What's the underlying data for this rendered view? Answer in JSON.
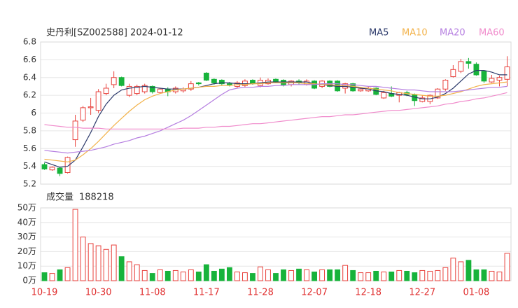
{
  "chart_data": {
    "type": "candlestick",
    "title": "史丹利[SZ002588] 2024-01-12",
    "categories": [
      "10-19",
      null,
      null,
      null,
      null,
      null,
      null,
      "10-30",
      null,
      null,
      null,
      null,
      null,
      null,
      "11-08",
      null,
      null,
      null,
      null,
      null,
      null,
      "11-17",
      null,
      null,
      null,
      null,
      null,
      null,
      "11-28",
      null,
      null,
      null,
      null,
      null,
      null,
      "12-07",
      null,
      null,
      null,
      null,
      null,
      null,
      "12-18",
      null,
      null,
      null,
      null,
      null,
      null,
      "12-27",
      null,
      null,
      null,
      null,
      null,
      null,
      "01-08",
      null,
      null,
      null,
      null
    ],
    "open": [
      5.42,
      5.36,
      5.38,
      5.33,
      5.7,
      5.92,
      6.06,
      6.03,
      6.22,
      6.32,
      6.4,
      6.2,
      6.22,
      6.24,
      6.3,
      6.23,
      6.27,
      6.24,
      6.25,
      6.27,
      6.34,
      6.45,
      6.38,
      6.37,
      6.33,
      6.3,
      6.31,
      6.37,
      6.31,
      6.33,
      6.38,
      6.37,
      6.32,
      6.36,
      6.32,
      6.36,
      6.3,
      6.36,
      6.36,
      6.28,
      6.33,
      6.25,
      6.25,
      6.28,
      6.17,
      6.22,
      6.2,
      6.23,
      6.21,
      6.13,
      6.13,
      6.17,
      6.27,
      6.41,
      6.47,
      6.58,
      6.55,
      6.47,
      6.35,
      6.37,
      6.38
    ],
    "high": [
      5.44,
      5.4,
      5.39,
      5.51,
      5.98,
      6.08,
      6.17,
      6.27,
      6.33,
      6.47,
      6.41,
      6.33,
      6.32,
      6.33,
      6.31,
      6.28,
      6.29,
      6.3,
      6.29,
      6.36,
      6.35,
      6.46,
      6.39,
      6.38,
      6.35,
      6.36,
      6.38,
      6.38,
      6.4,
      6.39,
      6.39,
      6.38,
      6.37,
      6.38,
      6.38,
      6.37,
      6.37,
      6.37,
      6.37,
      6.34,
      6.34,
      6.29,
      6.3,
      6.29,
      6.25,
      6.3,
      6.24,
      6.25,
      6.22,
      6.2,
      6.21,
      6.28,
      6.38,
      6.54,
      6.61,
      6.62,
      6.57,
      6.48,
      6.43,
      6.42,
      6.64
    ],
    "low": [
      5.36,
      5.35,
      5.29,
      5.32,
      5.62,
      5.9,
      5.98,
      6.0,
      6.2,
      6.28,
      6.3,
      6.18,
      6.2,
      6.22,
      6.22,
      6.22,
      6.19,
      6.22,
      6.23,
      6.25,
      6.31,
      6.36,
      6.32,
      6.31,
      6.3,
      6.28,
      6.29,
      6.32,
      6.29,
      6.32,
      6.34,
      6.3,
      6.3,
      6.32,
      6.31,
      6.27,
      6.28,
      6.29,
      6.24,
      6.22,
      6.24,
      6.24,
      6.24,
      6.2,
      6.16,
      6.18,
      6.12,
      6.19,
      6.08,
      6.12,
      6.1,
      6.16,
      6.25,
      6.4,
      6.45,
      6.5,
      6.42,
      6.34,
      6.34,
      6.3,
      6.3
    ],
    "close": [
      5.37,
      5.39,
      5.32,
      5.5,
      5.91,
      6.06,
      6.07,
      6.24,
      6.28,
      6.4,
      6.31,
      6.3,
      6.3,
      6.31,
      6.24,
      6.27,
      6.24,
      6.28,
      6.27,
      6.33,
      6.33,
      6.37,
      6.34,
      6.33,
      6.32,
      6.34,
      6.36,
      6.33,
      6.37,
      6.37,
      6.35,
      6.32,
      6.36,
      6.34,
      6.36,
      6.28,
      6.36,
      6.3,
      6.25,
      6.33,
      6.25,
      6.27,
      6.28,
      6.21,
      6.23,
      6.19,
      6.23,
      6.21,
      6.14,
      6.17,
      6.2,
      6.27,
      6.37,
      6.49,
      6.58,
      6.56,
      6.43,
      6.36,
      6.39,
      6.4,
      6.52
    ],
    "up_color": "#e8413c",
    "down_color": "#17b33b",
    "series": [
      {
        "name": "MA5",
        "color": "#2c3a6b",
        "values": [
          5.45,
          5.42,
          5.39,
          5.4,
          5.47,
          5.62,
          5.78,
          5.96,
          6.1,
          6.2,
          6.26,
          6.28,
          6.29,
          6.3,
          6.29,
          6.28,
          6.27,
          6.27,
          6.27,
          6.28,
          6.29,
          6.31,
          6.33,
          6.34,
          6.34,
          6.33,
          6.33,
          6.33,
          6.34,
          6.35,
          6.35,
          6.35,
          6.35,
          6.35,
          6.35,
          6.33,
          6.32,
          6.31,
          6.3,
          6.3,
          6.29,
          6.28,
          6.27,
          6.25,
          6.24,
          6.22,
          6.21,
          6.2,
          6.18,
          6.16,
          6.16,
          6.18,
          6.22,
          6.28,
          6.36,
          6.44,
          6.48,
          6.48,
          6.46,
          6.43,
          6.43
        ]
      },
      {
        "name": "MA10",
        "color": "#f2b24a",
        "values": [
          5.48,
          5.47,
          5.46,
          5.45,
          5.47,
          5.53,
          5.6,
          5.68,
          5.77,
          5.86,
          5.94,
          6.02,
          6.09,
          6.15,
          6.19,
          6.22,
          6.24,
          6.26,
          6.27,
          6.28,
          6.29,
          6.3,
          6.3,
          6.31,
          6.31,
          6.32,
          6.32,
          6.33,
          6.33,
          6.34,
          6.34,
          6.34,
          6.34,
          6.34,
          6.33,
          6.33,
          6.32,
          6.32,
          6.31,
          6.31,
          6.3,
          6.29,
          6.28,
          6.27,
          6.26,
          6.25,
          6.23,
          6.22,
          6.21,
          6.2,
          6.19,
          6.19,
          6.2,
          6.22,
          6.24,
          6.27,
          6.3,
          6.32,
          6.33,
          6.34,
          6.35
        ]
      },
      {
        "name": "MA20",
        "color": "#b57ee0",
        "values": [
          5.58,
          5.57,
          5.56,
          5.55,
          5.56,
          5.57,
          5.58,
          5.6,
          5.62,
          5.65,
          5.67,
          5.69,
          5.72,
          5.74,
          5.77,
          5.8,
          5.84,
          5.88,
          5.92,
          5.97,
          6.03,
          6.09,
          6.15,
          6.21,
          6.26,
          6.28,
          6.29,
          6.29,
          6.3,
          6.3,
          6.31,
          6.31,
          6.32,
          6.32,
          6.32,
          6.32,
          6.33,
          6.33,
          6.33,
          6.32,
          6.32,
          6.31,
          6.3,
          6.3,
          6.29,
          6.28,
          6.27,
          6.26,
          6.26,
          6.25,
          6.24,
          6.24,
          6.24,
          6.24,
          6.25,
          6.26,
          6.27,
          6.28,
          6.29,
          6.29,
          6.3
        ]
      },
      {
        "name": "MA60",
        "color": "#f08ccc",
        "values": [
          5.87,
          5.86,
          5.85,
          5.84,
          5.84,
          5.83,
          5.83,
          5.83,
          5.82,
          5.82,
          5.82,
          5.82,
          5.82,
          5.82,
          5.82,
          5.82,
          5.82,
          5.82,
          5.83,
          5.83,
          5.83,
          5.84,
          5.84,
          5.85,
          5.85,
          5.86,
          5.87,
          5.88,
          5.88,
          5.89,
          5.9,
          5.91,
          5.92,
          5.93,
          5.94,
          5.95,
          5.96,
          5.96,
          5.97,
          5.98,
          5.98,
          5.99,
          6.0,
          6.01,
          6.02,
          6.03,
          6.03,
          6.04,
          6.05,
          6.06,
          6.07,
          6.08,
          6.1,
          6.11,
          6.13,
          6.14,
          6.16,
          6.17,
          6.19,
          6.21,
          6.23
        ]
      }
    ],
    "ylim": [
      5.2,
      6.8
    ],
    "yticks": [
      6.8,
      6.6,
      6.4,
      6.2,
      6,
      5.8,
      5.6,
      5.4,
      5.2
    ],
    "grid": true,
    "volume": {
      "title": "成交量",
      "value": 188218,
      "values": [
        5.5,
        5,
        7.5,
        9,
        49,
        30,
        25.5,
        24,
        21.5,
        24.5,
        16.5,
        13,
        11,
        7,
        5,
        7.5,
        6.5,
        7,
        6,
        7.5,
        6,
        11,
        6.5,
        8,
        9,
        6,
        5.5,
        5,
        9.5,
        7.5,
        5,
        7.5,
        7,
        8,
        7.5,
        6,
        7.5,
        7.5,
        7.5,
        10.5,
        7,
        5.5,
        5.5,
        6.5,
        6,
        6,
        7,
        6.5,
        5.5,
        7,
        6.5,
        7,
        9,
        15.5,
        13,
        14,
        7.5,
        7.5,
        6.5,
        6,
        18.82
      ],
      "ylim": [
        0,
        50
      ],
      "yticks": [
        {
          "value": 50,
          "label": "50万"
        },
        {
          "value": 40,
          "label": "40万"
        },
        {
          "value": 30,
          "label": "30万"
        },
        {
          "value": 20,
          "label": "20万"
        },
        {
          "value": 10,
          "label": "10万"
        },
        {
          "value": 0,
          "label": "0万"
        }
      ]
    }
  }
}
